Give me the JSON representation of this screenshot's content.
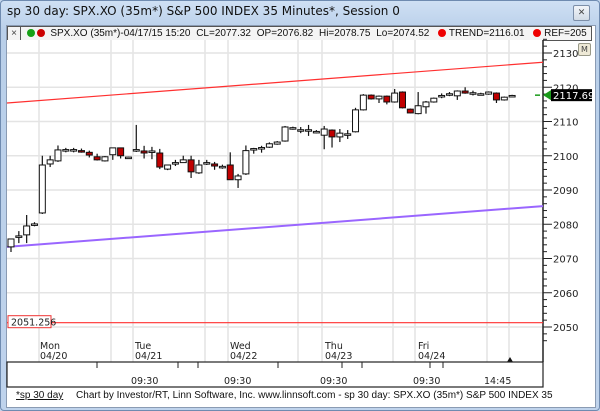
{
  "window": {
    "title": "sp 30 day: SPX.XO (35m*) S&P 500 INDEX 35 Minutes*, Session 0",
    "close_icon": "close-icon"
  },
  "legend": {
    "close_label": "×",
    "symbol": "SPX.XO (35m*)-04/17/15 15:20",
    "cl": "CL=2077.32",
    "op": "OP=2076.82",
    "hi": "Hi=2078.75",
    "lo": "Lo=2074.52",
    "trend": "TREND=2116.01",
    "ref": "REF=205",
    "colors": {
      "green": "#16a016",
      "red": "#cc0000"
    }
  },
  "m_button": "M",
  "chart_data": {
    "type": "candlestick",
    "ylim": [
      2045,
      2135
    ],
    "y_ticks": [
      "2130",
      "2120",
      "2110",
      "2100",
      "2090",
      "2080",
      "2070",
      "2060",
      "2050"
    ],
    "day_labels": [
      {
        "day": "Mon",
        "date": "04/20"
      },
      {
        "day": "Tue",
        "date": "04/21"
      },
      {
        "day": "Wed",
        "date": "04/22"
      },
      {
        "day": "Thu",
        "date": "04/23"
      },
      {
        "day": "Fri",
        "date": "04/24"
      }
    ],
    "time_labels": [
      "09:30",
      "09:30",
      "09:30",
      "09:30",
      "14:45"
    ],
    "last_price": "2117.69",
    "ref_line": {
      "label": "2051.256",
      "value": 2051.256,
      "color": "#ff3030"
    },
    "trend_upper": {
      "start": 2115.4,
      "end": 2127.3,
      "color": "#ff3030"
    },
    "trend_lower": {
      "start": 2073.4,
      "end": 2085.3,
      "color": "#9a66ff"
    },
    "up_color": "#ffffff",
    "down_color": "#c00000",
    "candles_ohlc": [
      [
        2073.4,
        2075.8,
        2071.9,
        2075.7
      ],
      [
        2076.4,
        2078.0,
        2074.5,
        2076.6
      ],
      [
        2076.9,
        2082.7,
        2074.5,
        2079.5
      ],
      [
        2080.0,
        2080.6,
        2079.4,
        2080.1
      ],
      [
        2083.3,
        2100.0,
        2083.0,
        2097.3
      ],
      [
        2097.6,
        2100.0,
        2096.7,
        2098.8
      ],
      [
        2098.5,
        2103.0,
        2098.2,
        2101.7
      ],
      [
        2101.7,
        2102.3,
        2101.0,
        2101.8
      ],
      [
        2101.7,
        2102.3,
        2101.0,
        2101.8
      ],
      [
        2101.5,
        2102.1,
        2100.9,
        2101.4
      ],
      [
        2101.0,
        2101.5,
        2099.5,
        2100.2
      ],
      [
        2099.7,
        2100.6,
        2098.6,
        2098.8
      ],
      [
        2098.5,
        2099.9,
        2098.3,
        2099.7
      ],
      [
        2100.3,
        2102.4,
        2098.8,
        2102.3
      ],
      [
        2102.3,
        2102.4,
        2099.2,
        2100.0
      ],
      [
        2099.6,
        2099.7,
        2099.5,
        2099.6
      ],
      [
        2101.7,
        2109.0,
        2101.1,
        2101.8
      ],
      [
        2101.4,
        2102.9,
        2099.2,
        2100.8
      ],
      [
        2101.4,
        2102.6,
        2099.0,
        2101.4
      ],
      [
        2100.8,
        2102.0,
        2096.1,
        2096.7
      ],
      [
        2096.1,
        2097.4,
        2095.8,
        2097.3
      ],
      [
        2097.9,
        2098.8,
        2097.0,
        2098.0
      ],
      [
        2098.0,
        2100.0,
        2097.9,
        2098.8
      ],
      [
        2098.8,
        2100.0,
        2093.5,
        2095.3
      ],
      [
        2095.0,
        2098.8,
        2094.7,
        2097.3
      ],
      [
        2097.9,
        2098.8,
        2097.3,
        2098.0
      ],
      [
        2097.6,
        2098.2,
        2095.9,
        2097.0
      ],
      [
        2096.8,
        2097.4,
        2096.2,
        2096.9
      ],
      [
        2097.3,
        2101.0,
        2093.0,
        2093.0
      ],
      [
        2093.0,
        2094.7,
        2090.6,
        2094.1
      ],
      [
        2094.7,
        2103.0,
        2094.4,
        2101.5
      ],
      [
        2102.0,
        2102.3,
        2100.6,
        2102.1
      ],
      [
        2102.3,
        2102.9,
        2100.9,
        2102.4
      ],
      [
        2102.5,
        2103.9,
        2102.3,
        2103.5
      ],
      [
        2103.4,
        2104.3,
        2103.2,
        2104.0
      ],
      [
        2104.3,
        2108.7,
        2104.1,
        2108.4
      ],
      [
        2108.1,
        2108.5,
        2107.6,
        2108.2
      ],
      [
        2107.5,
        2108.4,
        2106.6,
        2107.6
      ],
      [
        2107.5,
        2109.0,
        2105.8,
        2107.6
      ],
      [
        2107.0,
        2107.5,
        2106.5,
        2107.1
      ],
      [
        2106.0,
        2108.7,
        2101.9,
        2107.8
      ],
      [
        2107.5,
        2107.7,
        2102.4,
        2105.5
      ],
      [
        2105.5,
        2107.8,
        2104.0,
        2106.6
      ],
      [
        2106.3,
        2107.5,
        2104.9,
        2106.4
      ],
      [
        2107.0,
        2114.0,
        2106.8,
        2113.4
      ],
      [
        2113.4,
        2118.0,
        2113.2,
        2117.7
      ],
      [
        2117.7,
        2117.9,
        2116.4,
        2116.6
      ],
      [
        2116.6,
        2117.6,
        2115.4,
        2117.4
      ],
      [
        2117.4,
        2117.6,
        2115.0,
        2115.7
      ],
      [
        2115.7,
        2119.5,
        2115.5,
        2118.3
      ],
      [
        2118.6,
        2118.8,
        2113.8,
        2114.0
      ],
      [
        2113.6,
        2113.8,
        2112.4,
        2112.5
      ],
      [
        2112.3,
        2118.6,
        2112.1,
        2114.6
      ],
      [
        2114.3,
        2116.0,
        2112.3,
        2115.7
      ],
      [
        2115.7,
        2117.0,
        2115.5,
        2116.8
      ],
      [
        2117.5,
        2118.2,
        2116.8,
        2117.6
      ],
      [
        2118.0,
        2118.6,
        2117.4,
        2118.1
      ],
      [
        2117.5,
        2119.1,
        2116.3,
        2118.9
      ],
      [
        2118.9,
        2120.0,
        2118.1,
        2118.3
      ],
      [
        2118.3,
        2119.0,
        2117.6,
        2118.4
      ],
      [
        2118.0,
        2118.4,
        2117.6,
        2118.1
      ],
      [
        2118.0,
        2118.8,
        2117.8,
        2118.6
      ],
      [
        2118.3,
        2118.5,
        2115.4,
        2116.3
      ],
      [
        2116.3,
        2117.3,
        2116.1,
        2117.1
      ],
      [
        2117.5,
        2117.8,
        2117.4,
        2117.6
      ]
    ]
  },
  "footer": {
    "link": "*sp 30 day",
    "text": "Chart by Investor/RT, Linn Software, Inc. www.linnsoft.com - sp 30 day: SPX.XO (35m*) S&P 500 INDEX 35"
  }
}
